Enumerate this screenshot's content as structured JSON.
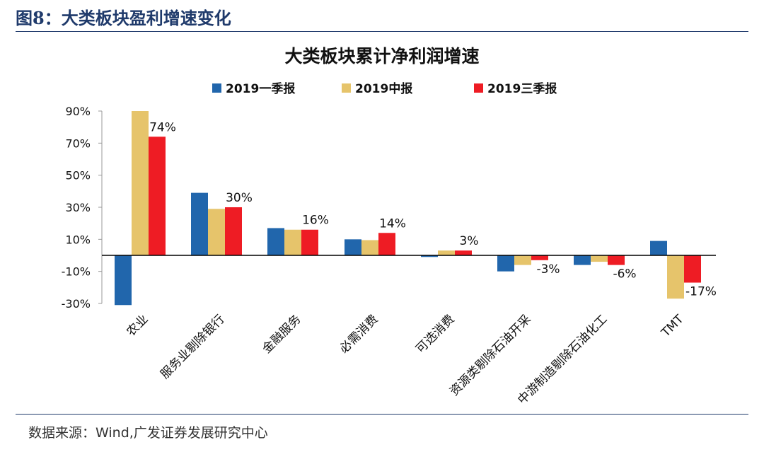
{
  "figure_title": "图8：大类板块盈利增速变化",
  "source_note": "数据来源：Wind,广发证券发展研究中心",
  "chart_data": {
    "type": "bar",
    "title": "大类板块累计净利润增速",
    "xlabel": "",
    "ylabel": "",
    "ylim": [
      -30,
      90
    ],
    "yticks": [
      -30,
      -10,
      10,
      30,
      50,
      70,
      90
    ],
    "ytick_labels": [
      "-30%",
      "-10%",
      "10%",
      "30%",
      "50%",
      "70%",
      "90%"
    ],
    "legend_position": "top",
    "grid": false,
    "categories": [
      "农业",
      "服务业剔除银行",
      "金融服务",
      "必需消费",
      "可选消费",
      "资源类剔除石油开采",
      "中游制造剔除石油化工",
      "TMT"
    ],
    "series": [
      {
        "name": "2019一季报",
        "color": "#2166ac",
        "values": [
          -31,
          39,
          17,
          10,
          -1,
          -10,
          -6,
          9
        ]
      },
      {
        "name": "2019中报",
        "color": "#e6c46b",
        "values": [
          90,
          29,
          16,
          9.5,
          3,
          -6,
          -4,
          -27
        ]
      },
      {
        "name": "2019三季报",
        "color": "#ee1c24",
        "values": [
          74,
          30,
          16,
          14,
          3,
          -3,
          -6,
          -17
        ]
      }
    ],
    "data_labels": [
      "74%",
      "30%",
      "16%",
      "14%",
      "3%",
      "-3%",
      "-6%",
      "-17%"
    ]
  }
}
